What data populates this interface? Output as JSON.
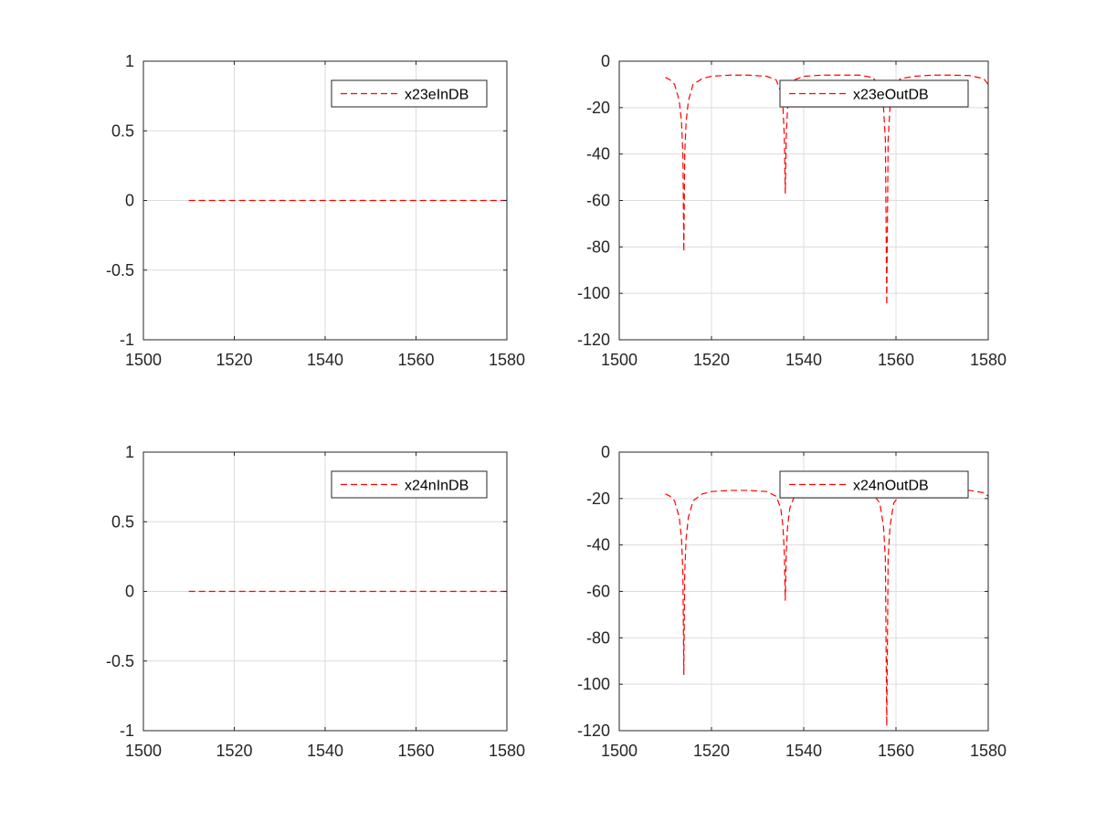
{
  "chart_data": [
    {
      "type": "line",
      "title": "",
      "xlabel": "",
      "ylabel": "",
      "xlim": [
        1500,
        1580
      ],
      "ylim": [
        -1,
        1
      ],
      "xticks": [
        1500,
        1520,
        1540,
        1560,
        1580
      ],
      "yticks": [
        -1,
        -0.5,
        0,
        0.5,
        1
      ],
      "grid": true,
      "legend_position": "top-right",
      "series": [
        {
          "name": "x23eInDB",
          "color": "#ff0000",
          "linestyle": "dashed",
          "x": [
            1510,
            1520,
            1530,
            1540,
            1550,
            1560,
            1570,
            1580
          ],
          "y": [
            0,
            0,
            0,
            0,
            0,
            0,
            0,
            0
          ]
        }
      ]
    },
    {
      "type": "line",
      "title": "",
      "xlabel": "",
      "ylabel": "",
      "xlim": [
        1500,
        1580
      ],
      "ylim": [
        -120,
        0
      ],
      "xticks": [
        1500,
        1520,
        1540,
        1560,
        1580
      ],
      "yticks": [
        -120,
        -100,
        -80,
        -60,
        -40,
        -20,
        0
      ],
      "grid": true,
      "legend_position": "top-right",
      "series": [
        {
          "name": "x23eOutDB",
          "color": "#ff0000",
          "linestyle": "dashed",
          "x": [
            1510,
            1511,
            1512,
            1513,
            1513.5,
            1513.8,
            1514,
            1514.2,
            1514.5,
            1515,
            1516,
            1518,
            1520,
            1524,
            1528,
            1532,
            1534,
            1535,
            1535.5,
            1535.8,
            1536,
            1536.2,
            1536.5,
            1537,
            1538,
            1540,
            1544,
            1548,
            1552,
            1555,
            1556.5,
            1557.3,
            1557.7,
            1558,
            1558.3,
            1558.7,
            1559.5,
            1561,
            1564,
            1568,
            1572,
            1576,
            1579,
            1580
          ],
          "y": [
            -7,
            -8,
            -10,
            -17,
            -26,
            -40,
            -82,
            -40,
            -26,
            -17,
            -10,
            -7.5,
            -6.5,
            -6,
            -6,
            -6.5,
            -8,
            -13,
            -20,
            -33,
            -57,
            -33,
            -20,
            -13,
            -8,
            -6.5,
            -6,
            -6,
            -6,
            -7,
            -11,
            -20,
            -34,
            -105,
            -34,
            -20,
            -11,
            -7.5,
            -6.5,
            -6,
            -6,
            -6.2,
            -7.5,
            -10
          ]
        }
      ]
    },
    {
      "type": "line",
      "title": "",
      "xlabel": "",
      "ylabel": "",
      "xlim": [
        1500,
        1580
      ],
      "ylim": [
        -1,
        1
      ],
      "xticks": [
        1500,
        1520,
        1540,
        1560,
        1580
      ],
      "yticks": [
        -1,
        -0.5,
        0,
        0.5,
        1
      ],
      "grid": true,
      "legend_position": "top-right",
      "series": [
        {
          "name": "x24nInDB",
          "color": "#ff0000",
          "linestyle": "dashed",
          "x": [
            1510,
            1520,
            1530,
            1540,
            1550,
            1560,
            1570,
            1580
          ],
          "y": [
            0,
            0,
            0,
            0,
            0,
            0,
            0,
            0
          ]
        }
      ]
    },
    {
      "type": "line",
      "title": "",
      "xlabel": "",
      "ylabel": "",
      "xlim": [
        1500,
        1580
      ],
      "ylim": [
        -120,
        0
      ],
      "xticks": [
        1500,
        1520,
        1540,
        1560,
        1580
      ],
      "yticks": [
        -120,
        -100,
        -80,
        -60,
        -40,
        -20,
        0
      ],
      "grid": true,
      "legend_position": "top-right",
      "series": [
        {
          "name": "x24nOutDB",
          "color": "#ff0000",
          "linestyle": "dashed",
          "x": [
            1510,
            1511,
            1512,
            1513,
            1513.5,
            1513.8,
            1514,
            1514.2,
            1514.5,
            1515,
            1516,
            1518,
            1520,
            1524,
            1528,
            1532,
            1534,
            1535,
            1535.5,
            1535.8,
            1536,
            1536.2,
            1536.5,
            1537,
            1538,
            1540,
            1544,
            1548,
            1552,
            1555,
            1556.5,
            1557.3,
            1557.7,
            1558,
            1558.3,
            1558.7,
            1559.5,
            1561,
            1564,
            1568,
            1572,
            1576,
            1579,
            1580
          ],
          "y": [
            -18,
            -19,
            -21,
            -28,
            -37,
            -52,
            -96,
            -52,
            -37,
            -28,
            -21,
            -18,
            -17,
            -16.5,
            -16.5,
            -17,
            -19,
            -24,
            -32,
            -44,
            -64,
            -44,
            -32,
            -24,
            -19,
            -17,
            -16.5,
            -16.5,
            -16.5,
            -18,
            -22,
            -32,
            -46,
            -118,
            -46,
            -32,
            -22,
            -18,
            -17,
            -16.5,
            -16.5,
            -16.5,
            -17.5,
            -19
          ]
        }
      ]
    }
  ]
}
